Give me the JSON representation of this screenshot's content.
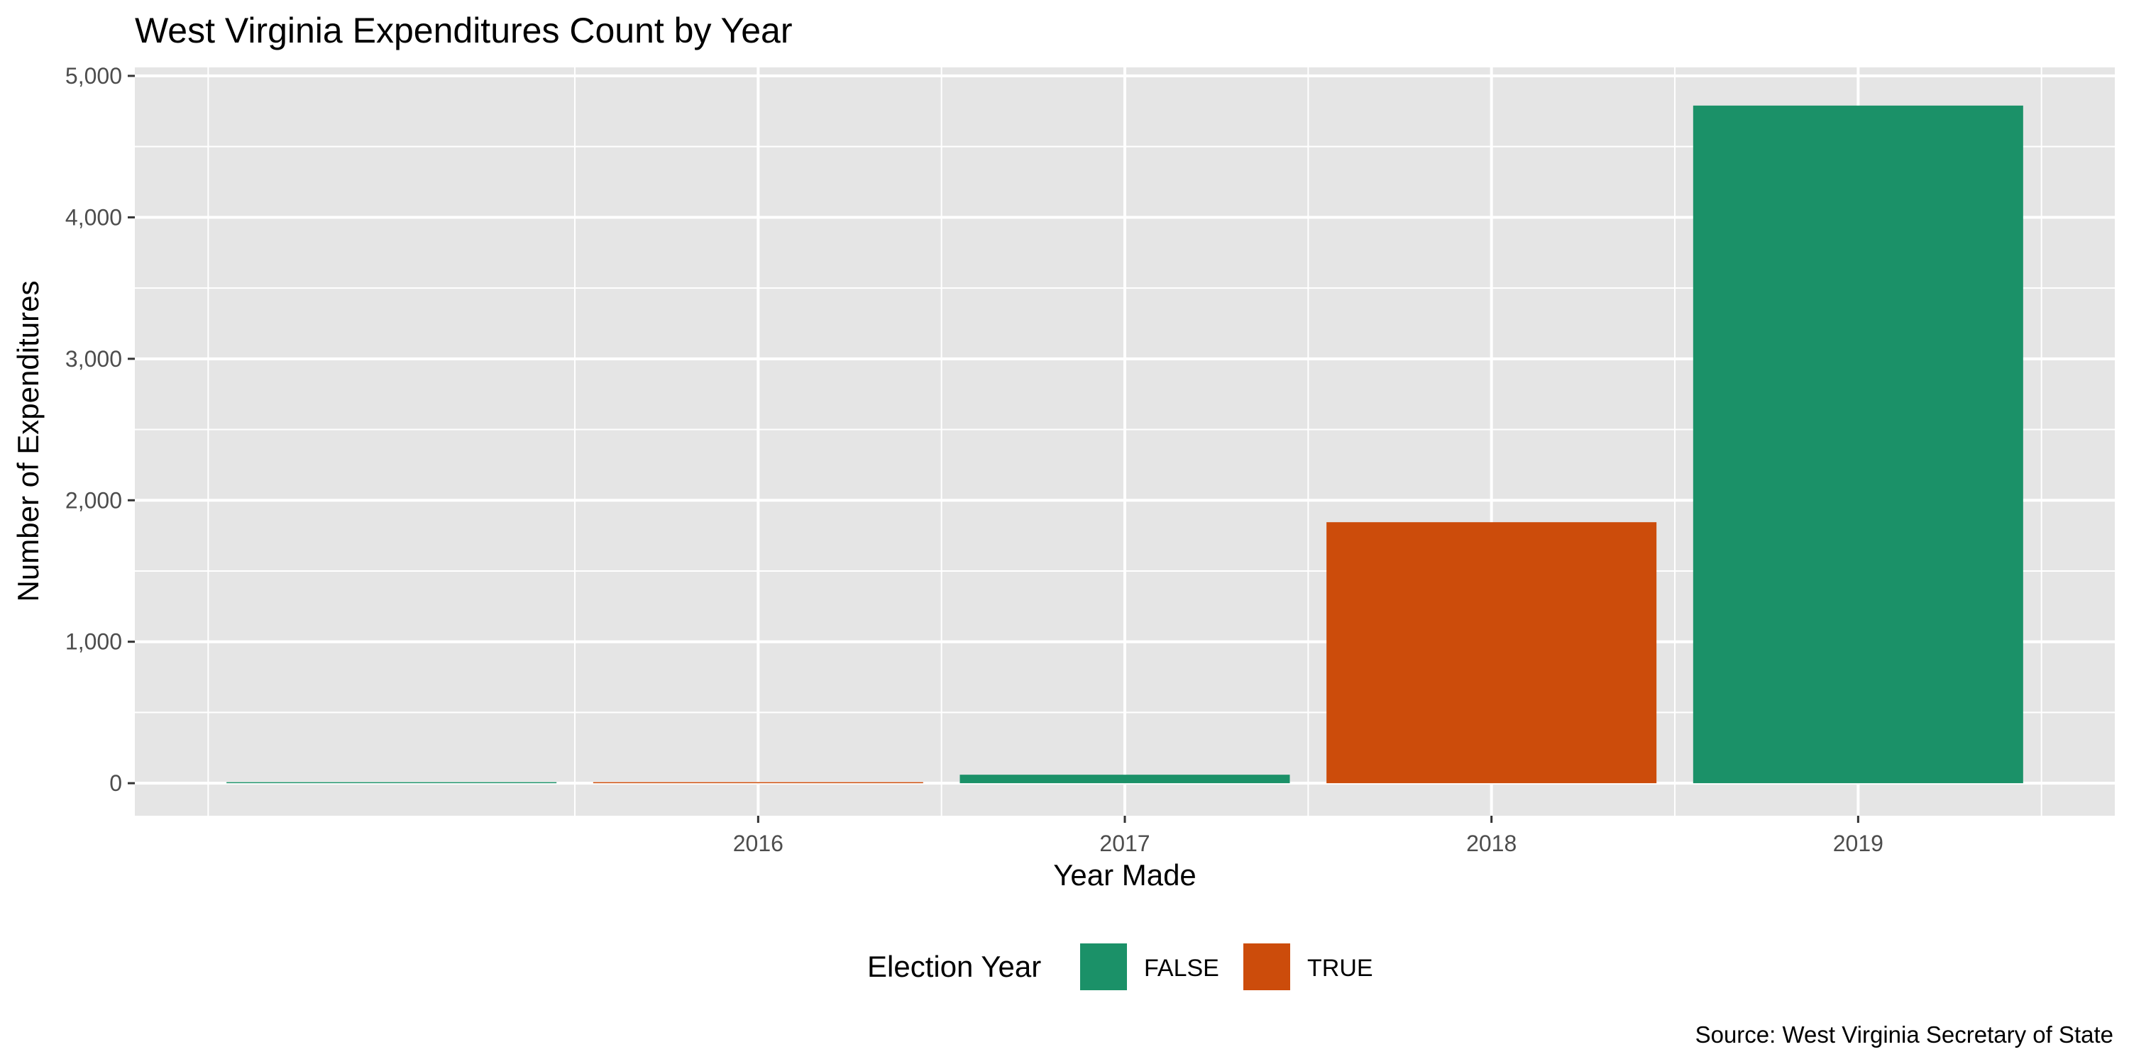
{
  "chart_data": {
    "type": "bar",
    "title": "West Virginia Expenditures Count by Year",
    "xlabel": "Year Made",
    "ylabel": "Number of Expenditures",
    "caption": "Source: West Virginia Secretary of State",
    "x": [
      2015,
      2016,
      2017,
      2018,
      2019
    ],
    "x_tick_labels": [
      "2016",
      "2017",
      "2018",
      "2019"
    ],
    "x_tick_values": [
      2016,
      2017,
      2018,
      2019
    ],
    "xlim": [
      2014.3,
      2019.7
    ],
    "values": [
      4,
      6,
      60,
      1845,
      4790
    ],
    "fill_group": [
      "FALSE",
      "TRUE",
      "FALSE",
      "TRUE",
      "FALSE"
    ],
    "ylim": [
      -230,
      5060
    ],
    "y_ticks": [
      0,
      1000,
      2000,
      3000,
      4000,
      5000
    ],
    "y_tick_labels": [
      "0",
      "1,000",
      "2,000",
      "3,000",
      "4,000",
      "5,000"
    ],
    "grid": true,
    "legend": {
      "title": "Election Year",
      "position": "bottom",
      "entries": [
        {
          "label": "FALSE",
          "color": "#1b9168"
        },
        {
          "label": "TRUE",
          "color": "#cc4c0b"
        }
      ]
    },
    "colors": {
      "panel": "#e5e5e5",
      "grid": "#ffffff"
    }
  }
}
